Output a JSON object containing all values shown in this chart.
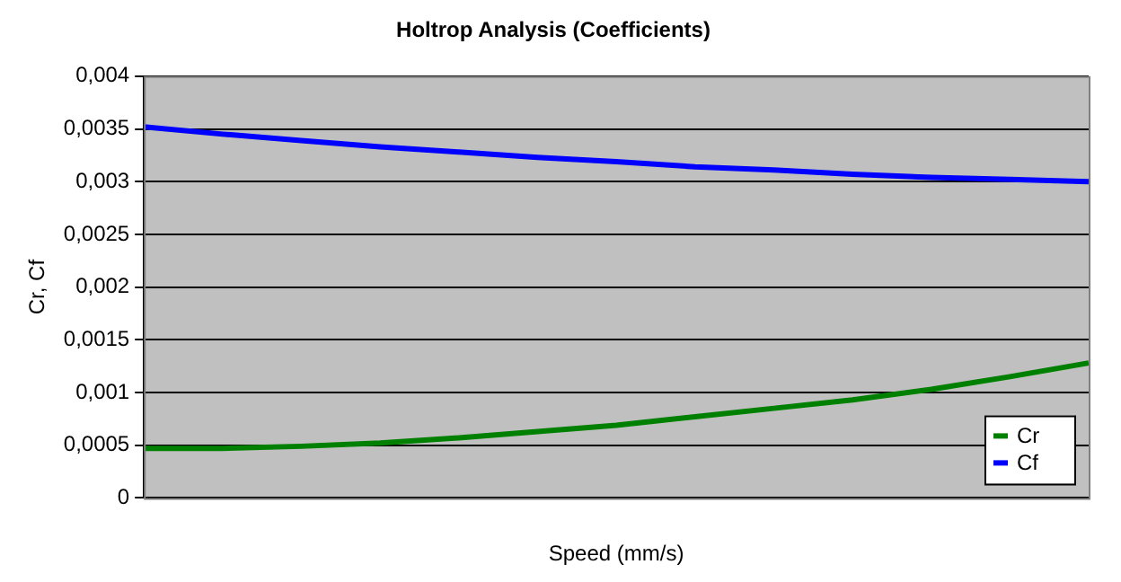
{
  "chart_data": {
    "type": "line",
    "title": "Holtrop Analysis (Coefficients)",
    "xlabel": "Speed (mm/s)",
    "ylabel": "Cr, Cf",
    "categories": [
      null,
      null,
      null,
      null,
      null,
      null,
      null,
      null,
      null,
      null,
      null,
      null,
      null
    ],
    "series": [
      {
        "name": "Cr",
        "color": "#008000",
        "values": [
          0.00047,
          0.00047,
          0.00049,
          0.00052,
          0.00057,
          0.00063,
          0.00069,
          0.00077,
          0.00085,
          0.00093,
          0.00103,
          0.00115,
          0.00128
        ]
      },
      {
        "name": "Cf",
        "color": "#0000ff",
        "values": [
          0.00352,
          0.00345,
          0.00339,
          0.00333,
          0.00328,
          0.00323,
          0.00319,
          0.00314,
          0.00311,
          0.00307,
          0.00304,
          0.00302,
          0.003
        ]
      }
    ],
    "ylim": [
      0,
      0.004
    ],
    "yticks": [
      0,
      {
        "value": 0.0005,
        "label": "0,0005"
      },
      {
        "value": 0.001,
        "label": "0,001"
      },
      {
        "value": 0.0015,
        "label": "0,0015"
      },
      {
        "value": 0.002,
        "label": "0,002"
      },
      {
        "value": 0.0025,
        "label": "0,0025"
      },
      {
        "value": 0.003,
        "label": "0,003"
      },
      {
        "value": 0.0035,
        "label": "0,0035"
      },
      {
        "value": 0.004,
        "label": "0,004"
      }
    ],
    "grid": "y",
    "legend": "bottom right",
    "marker": "none",
    "line_style": "solid"
  }
}
